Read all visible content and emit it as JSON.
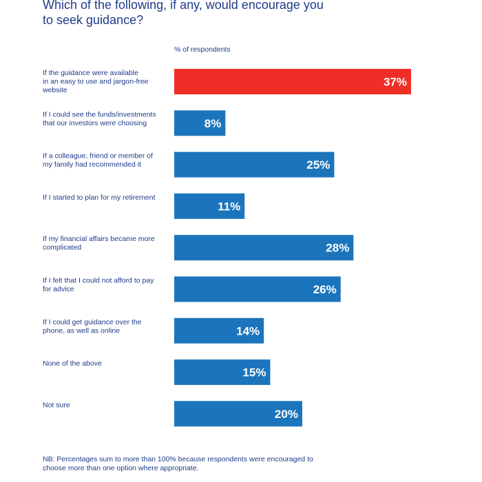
{
  "title": "Which of the following, if any, would encourage you to seek guidance?",
  "unit_label": "% of respondents",
  "footnote": "NB: Percentages sum to more than 100% because respondents were encouraged to choose more than one option where appropriate.",
  "colors": {
    "highlight": "#ef2e27",
    "bar": "#1c75bc",
    "text": "#1f3b8a",
    "value_text": "#ffffff"
  },
  "chart_data": {
    "type": "bar",
    "orientation": "horizontal",
    "categories": [
      [
        "If the guidance were available",
        "in an easy to use and jargon-free",
        "website"
      ],
      [
        "If I could see the funds/investments",
        "that our investors were choosing"
      ],
      [
        "If a colleague, friend or member of",
        "my family had recommended it"
      ],
      [
        "If I started to plan for my retirement"
      ],
      [
        "If my financial affairs became more",
        "complicated"
      ],
      [
        "If I felt that I could not afford to pay",
        "for advice"
      ],
      [
        "If I could get guidance over the",
        "phone, as well as online"
      ],
      [
        "None of the above"
      ],
      [
        "Not sure"
      ]
    ],
    "values": [
      37,
      8,
      25,
      11,
      28,
      26,
      14,
      15,
      20
    ],
    "value_labels": [
      "37%",
      "8%",
      "25%",
      "11%",
      "28%",
      "26%",
      "14%",
      "15%",
      "20%"
    ],
    "highlighted_index": 0,
    "xlim": [
      0,
      37
    ],
    "grid": false,
    "legend": "none"
  }
}
